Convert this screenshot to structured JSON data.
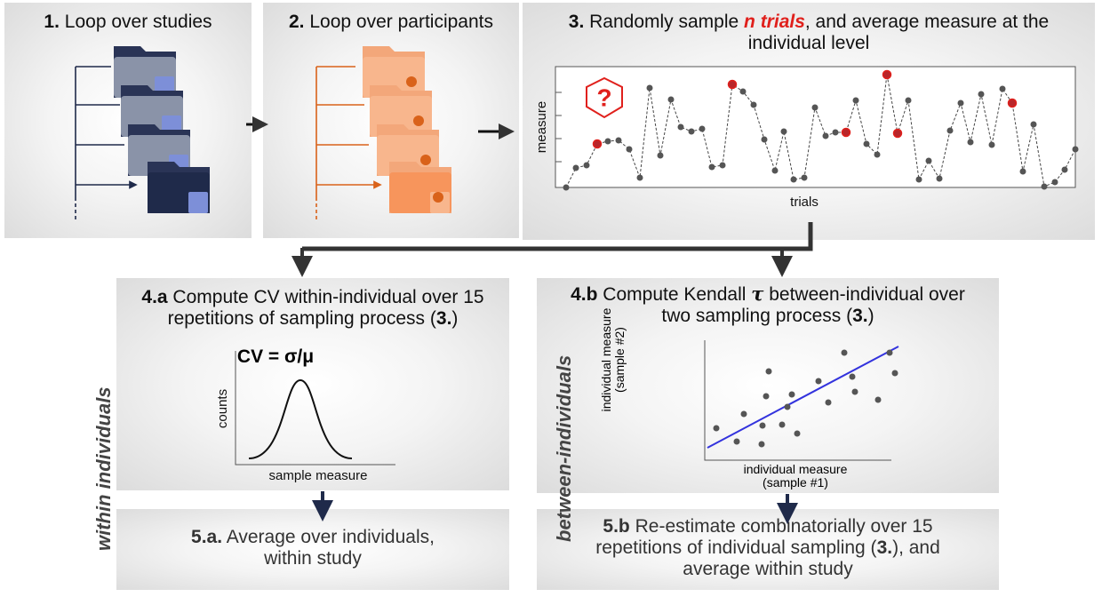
{
  "panels": {
    "p1": {
      "number": "1.",
      "title": "Loop over studies"
    },
    "p2": {
      "number": "2.",
      "title": "Loop over participants"
    },
    "p3": {
      "number": "3.",
      "title_a": "Randomly sample ",
      "title_em": "n trials",
      "title_b": ", and average measure at the individual level",
      "y_label": "measure",
      "x_label": "trials"
    },
    "p4a": {
      "number": "4.a",
      "title_a": " Compute CV within-individual over 15 repetitions of sampling process (",
      "ref": "3.",
      "title_b": ")",
      "formula": "CV = σ/μ",
      "y_label": "counts",
      "x_label": "sample measure"
    },
    "p4b": {
      "number": "4.b",
      "title_a": " Compute Kendall ",
      "tau": "τ",
      "title_b": " between-individual over two sampling process (",
      "ref": "3.",
      "title_c": ")",
      "y_label": "individual measure (sample #2)",
      "x_label": "individual measure (sample #1)"
    },
    "p5a": {
      "number": "5.a.",
      "title": " Average over individuals, within study"
    },
    "p5b": {
      "number": "5.b",
      "title_a": " Re-estimate combinatorially over 15 repetitions of individual sampling (",
      "ref": "3.",
      "title_b": "), and average within study"
    }
  },
  "side_labels": {
    "within": "within individuals",
    "between": "between-individuals"
  }
}
